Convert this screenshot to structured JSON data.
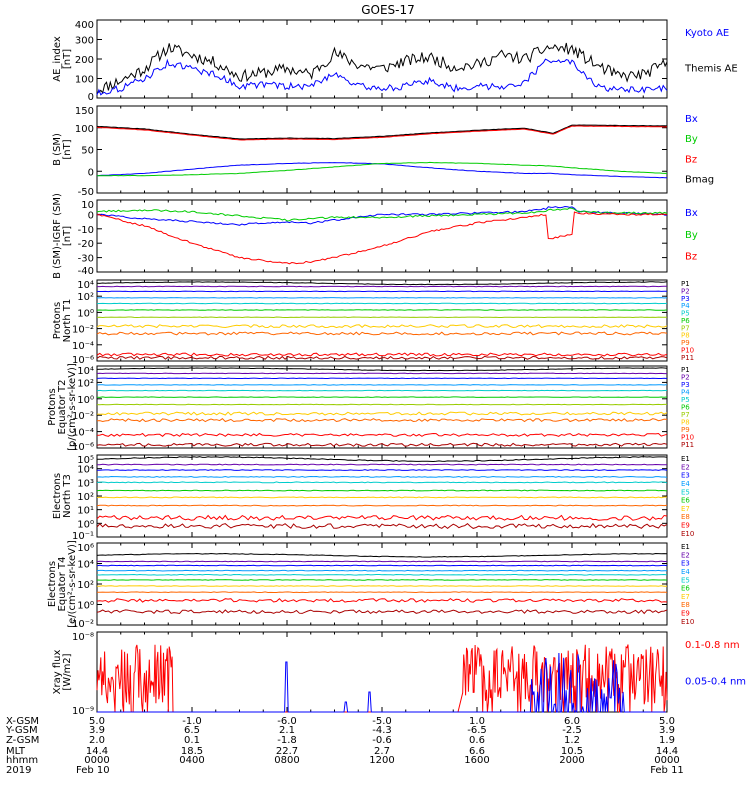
{
  "title": "GOES-17",
  "panels": [
    {
      "ylabel": [
        "AE_index",
        "[nT]"
      ],
      "yticks": [
        "400",
        "300",
        "200",
        "100",
        "0"
      ],
      "legend": [
        {
          "label": "Kyoto AE",
          "color": "#0000ff"
        },
        {
          "label": "Themis AE",
          "color": "#000000"
        }
      ]
    },
    {
      "ylabel": [
        "B (SM)",
        "[nT]"
      ],
      "yticks": [
        "150",
        "100",
        "50",
        "0",
        "-50"
      ],
      "legend": [
        {
          "label": "Bx",
          "color": "#0000ff"
        },
        {
          "label": "By",
          "color": "#00cc00"
        },
        {
          "label": "Bz",
          "color": "#ff0000"
        },
        {
          "label": "Bmag",
          "color": "#000000"
        }
      ]
    },
    {
      "ylabel": [
        "B (SM)-IGRF (SM)",
        "[nT]"
      ],
      "yticks": [
        "10",
        "0",
        "-10",
        "-20",
        "-30",
        "-40"
      ],
      "legend": [
        {
          "label": "Bx",
          "color": "#0000ff"
        },
        {
          "label": "By",
          "color": "#00cc00"
        },
        {
          "label": "Bz",
          "color": "#ff0000"
        }
      ]
    },
    {
      "ylabel": [
        "Protons",
        "North T1"
      ],
      "yticks": [
        "10⁴",
        "10²",
        "10⁰",
        "10⁻²",
        "10⁻⁴",
        "10⁻⁶"
      ],
      "legend": [
        {
          "label": "P1",
          "color": "#000000"
        },
        {
          "label": "P2",
          "color": "#6600aa"
        },
        {
          "label": "P3",
          "color": "#0000ff"
        },
        {
          "label": "P4",
          "color": "#0099ff"
        },
        {
          "label": "P5",
          "color": "#00cccc"
        },
        {
          "label": "P6",
          "color": "#00cc00"
        },
        {
          "label": "P7",
          "color": "#99cc00"
        },
        {
          "label": "P8",
          "color": "#ffcc00"
        },
        {
          "label": "P9",
          "color": "#ff6600"
        },
        {
          "label": "P10",
          "color": "#ff0000"
        },
        {
          "label": "P11",
          "color": "#aa0000"
        }
      ]
    },
    {
      "ylabel": [
        "Protons",
        "Equator T2",
        "[p/(cm²-s-sr-keV)]"
      ],
      "yticks": [
        "10⁴",
        "10²",
        "10⁰",
        "10⁻²",
        "10⁻⁴",
        "10⁻⁶"
      ],
      "legend": [
        {
          "label": "P1",
          "color": "#000000"
        },
        {
          "label": "P2",
          "color": "#6600aa"
        },
        {
          "label": "P3",
          "color": "#0000ff"
        },
        {
          "label": "P4",
          "color": "#0099ff"
        },
        {
          "label": "P5",
          "color": "#00cccc"
        },
        {
          "label": "P6",
          "color": "#00cc00"
        },
        {
          "label": "P7",
          "color": "#99cc00"
        },
        {
          "label": "P8",
          "color": "#ffcc00"
        },
        {
          "label": "P9",
          "color": "#ff6600"
        },
        {
          "label": "P10",
          "color": "#ff0000"
        },
        {
          "label": "P11",
          "color": "#aa0000"
        }
      ]
    },
    {
      "ylabel": [
        "Electrons",
        "North T3"
      ],
      "yticks": [
        "10⁵",
        "10⁴",
        "10³",
        "10²",
        "10¹",
        "10⁰",
        "10⁻¹"
      ],
      "legend": [
        {
          "label": "E1",
          "color": "#000000"
        },
        {
          "label": "E2",
          "color": "#6600aa"
        },
        {
          "label": "E3",
          "color": "#0000ff"
        },
        {
          "label": "E4",
          "color": "#0099ff"
        },
        {
          "label": "E5",
          "color": "#00cccc"
        },
        {
          "label": "E6",
          "color": "#00cc00"
        },
        {
          "label": "E7",
          "color": "#ffcc00"
        },
        {
          "label": "E8",
          "color": "#ff6600"
        },
        {
          "label": "E9",
          "color": "#ff0000"
        },
        {
          "label": "E10",
          "color": "#aa0000"
        }
      ]
    },
    {
      "ylabel": [
        "Electrons",
        "Equator T4",
        "[e/(cm²-s-sr-keV)]"
      ],
      "yticks": [
        "10⁶",
        "10⁴",
        "10²",
        "10⁰",
        "10⁻²"
      ],
      "legend": [
        {
          "label": "E1",
          "color": "#000000"
        },
        {
          "label": "E2",
          "color": "#6600aa"
        },
        {
          "label": "E3",
          "color": "#0000ff"
        },
        {
          "label": "E4",
          "color": "#0099ff"
        },
        {
          "label": "E5",
          "color": "#00cccc"
        },
        {
          "label": "E6",
          "color": "#00cc00"
        },
        {
          "label": "E7",
          "color": "#ffcc00"
        },
        {
          "label": "E8",
          "color": "#ff6600"
        },
        {
          "label": "E9",
          "color": "#ff0000"
        },
        {
          "label": "E10",
          "color": "#aa0000"
        }
      ]
    },
    {
      "ylabel": [
        "Xray flux",
        "[W/m2]"
      ],
      "yticks": [
        "10⁻⁸",
        "10⁻⁹"
      ],
      "legend": [
        {
          "label": "0.1-0.8 nm",
          "color": "#ff0000"
        },
        {
          "label": "0.05-0.4 nm",
          "color": "#0000ff"
        }
      ]
    }
  ],
  "footer": {
    "row_labels": [
      "X-GSM",
      "Y-GSM",
      "Z-GSM",
      "MLT",
      "hhmm",
      "2019"
    ],
    "columns": [
      [
        "5.0",
        "3.9",
        "2.0",
        "14.4",
        "0000",
        "Feb 10"
      ],
      [
        "-1.0",
        "6.5",
        "0.1",
        "18.5",
        "0400",
        ""
      ],
      [
        "-6.0",
        "2.1",
        "-1.8",
        "22.7",
        "0800",
        ""
      ],
      [
        "-5.0",
        "-4.3",
        "-0.6",
        "2.7",
        "1200",
        ""
      ],
      [
        "1.0",
        "-6.5",
        "0.6",
        "6.6",
        "1600",
        ""
      ],
      [
        "6.0",
        "-2.5",
        "1.2",
        "10.5",
        "2000",
        ""
      ],
      [
        "5.0",
        "3.9",
        "1.9",
        "14.4",
        "0000",
        "Feb 11"
      ]
    ]
  },
  "chart_data": [
    {
      "type": "line",
      "name": "AE index",
      "ylim": [
        0,
        400
      ],
      "x_hours": [
        0,
        1,
        2,
        3,
        4,
        5,
        6,
        7,
        8,
        9,
        10,
        11,
        12,
        13,
        14,
        15,
        16,
        17,
        18,
        19,
        20,
        21,
        22,
        23,
        24
      ],
      "series": [
        {
          "name": "Themis AE",
          "values": [
            40,
            90,
            150,
            260,
            220,
            180,
            110,
            130,
            150,
            120,
            230,
            170,
            150,
            190,
            210,
            160,
            170,
            220,
            200,
            260,
            250,
            170,
            110,
            120,
            180
          ]
        },
        {
          "name": "Kyoto AE",
          "values": [
            25,
            50,
            100,
            180,
            150,
            120,
            60,
            70,
            60,
            60,
            130,
            60,
            50,
            60,
            90,
            50,
            60,
            60,
            80,
            200,
            180,
            60,
            40,
            40,
            50
          ]
        }
      ]
    },
    {
      "type": "line",
      "name": "B (SM)",
      "ylim": [
        -50,
        150
      ],
      "x_hours": [
        0,
        2,
        4,
        6,
        8,
        10,
        12,
        14,
        16,
        18,
        19.2,
        20,
        22,
        24
      ],
      "series": [
        {
          "name": "Bmag",
          "values": [
            103,
            97,
            85,
            74,
            76,
            75,
            80,
            88,
            94,
            99,
            87,
            106,
            105,
            104
          ]
        },
        {
          "name": "Bx",
          "values": [
            -10,
            -5,
            5,
            14,
            18,
            20,
            17,
            8,
            0,
            -5,
            -5,
            -8,
            -12,
            -15
          ]
        },
        {
          "name": "By",
          "values": [
            -10,
            -10,
            -8,
            -5,
            2,
            10,
            18,
            20,
            18,
            14,
            12,
            8,
            0,
            -5
          ]
        },
        {
          "name": "Bz",
          "values": [
            101,
            95,
            83,
            72,
            74,
            73,
            78,
            86,
            92,
            97,
            85,
            104,
            103,
            102
          ]
        }
      ]
    },
    {
      "type": "line",
      "name": "B (SM)-IGRF (SM)",
      "ylim": [
        -40,
        10
      ],
      "x_hours": [
        0,
        2,
        4,
        6,
        8,
        9,
        10,
        12,
        14,
        16,
        18,
        18.9,
        19,
        20,
        20.1,
        20.2,
        22,
        24
      ],
      "series": [
        {
          "name": "Bx",
          "values": [
            0,
            -3,
            -5,
            -7,
            -5,
            -6,
            -4,
            0,
            0,
            1,
            2,
            4,
            5,
            5,
            4,
            2,
            1,
            0
          ]
        },
        {
          "name": "By",
          "values": [
            2,
            3,
            2,
            -1,
            -4,
            -3,
            -2,
            -2,
            -1,
            0,
            1,
            2,
            3,
            4,
            3,
            2,
            1,
            1
          ]
        },
        {
          "name": "Bz",
          "values": [
            0,
            -8,
            -20,
            -30,
            -34,
            -33,
            -30,
            -22,
            -12,
            -6,
            -2,
            0,
            -17,
            -14,
            2,
            1,
            0,
            0
          ]
        }
      ]
    },
    {
      "type": "line",
      "name": "Protons North T1",
      "yscale": "log",
      "ylim": [
        1e-06,
        10000.0
      ],
      "series_levels_log10": [
        3.6,
        3.2,
        2.6,
        1.8,
        1.1,
        0.3,
        -0.6,
        -1.7,
        -2.6,
        -5.2,
        -5.6
      ]
    },
    {
      "type": "line",
      "name": "Protons Equator T2",
      "yscale": "log",
      "ylim": [
        1e-06,
        10000.0
      ],
      "series_levels_log10": [
        3.6,
        3.1,
        2.5,
        1.7,
        1.0,
        0.2,
        -0.7,
        -1.8,
        -2.6,
        -4.4,
        -5.6
      ]
    },
    {
      "type": "line",
      "name": "Electrons North T3",
      "yscale": "log",
      "ylim": [
        0.1,
        100000.0
      ],
      "series_levels_log10": [
        4.7,
        4.3,
        3.9,
        3.4,
        3.0,
        2.4,
        1.9,
        1.3,
        0.4,
        -0.2
      ]
    },
    {
      "type": "line",
      "name": "Electrons Equator T4",
      "yscale": "log",
      "ylim": [
        0.01,
        1000000.0
      ],
      "series_levels_log10": [
        4.8,
        4.2,
        3.8,
        3.3,
        2.9,
        2.4,
        1.8,
        1.2,
        0.4,
        -0.7
      ]
    },
    {
      "type": "line",
      "name": "Xray flux",
      "yscale": "log",
      "ylim": [
        1e-09,
        1e-08
      ],
      "series": [
        {
          "name": "0.1-0.8 nm",
          "activity": "bursts at 00-03 h and 15-24 h"
        },
        {
          "name": "0.05-0.4 nm",
          "activity": "isolated spikes near 08, 10.5, 11.5 h and 18-22 h"
        }
      ]
    }
  ]
}
